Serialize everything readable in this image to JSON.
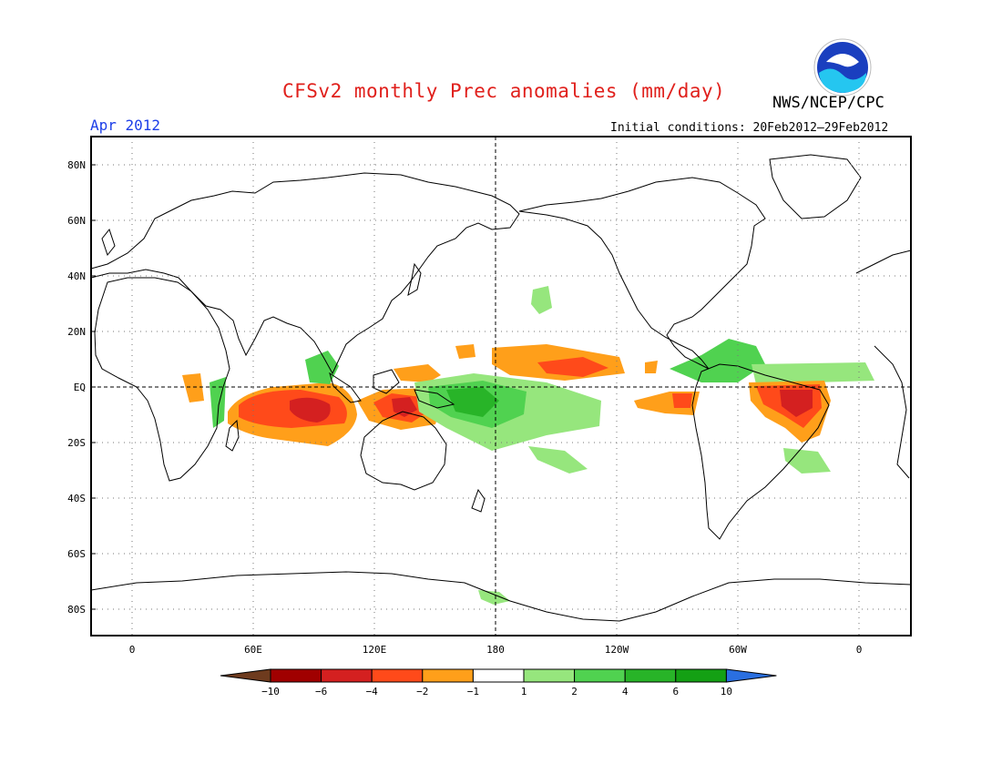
{
  "title": "CFSv2 monthly Prec anomalies (mm/day)",
  "agency": "NWS/NCEP/CPC",
  "logo_text": "NOAA",
  "month": "Apr 2012",
  "initial_conditions": "Initial conditions: 20Feb2012–29Feb2012",
  "lat_labels": [
    "80N",
    "60N",
    "40N",
    "20N",
    "EQ",
    "20S",
    "40S",
    "60S",
    "80S"
  ],
  "lon_labels": [
    "0",
    "60E",
    "120E",
    "180",
    "120W",
    "60W",
    "0"
  ],
  "legend": {
    "labels": [
      "−10",
      "−6",
      "−4",
      "−2",
      "−1",
      "1",
      "2",
      "4",
      "6",
      "10"
    ],
    "colors": [
      "#6e3b1e",
      "#a00000",
      "#d42020",
      "#ff4a1a",
      "#ff9f1a",
      "#ffffff",
      "#96e67d",
      "#50d250",
      "#28b428",
      "#14a014",
      "#2a6fe0"
    ]
  },
  "colors": {
    "title": "#e0201c",
    "month": "#1d3fe8",
    "coast": "#000000"
  }
}
